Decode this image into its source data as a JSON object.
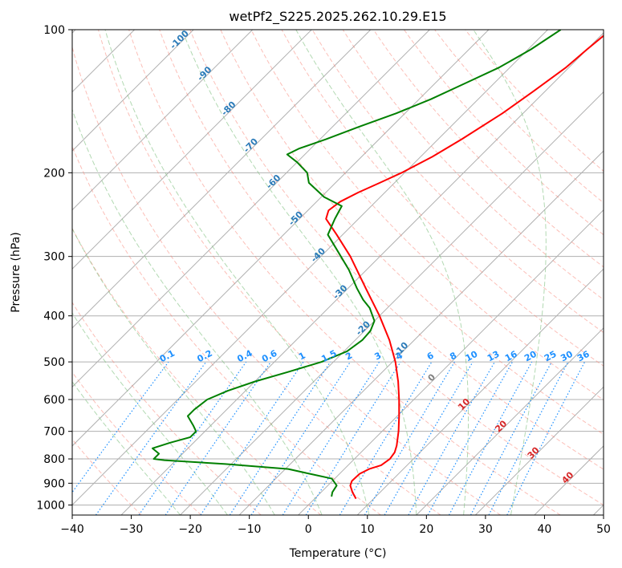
{
  "chart_data": {
    "type": "line",
    "subtype": "skew-t log-p",
    "title": "wetPf2_S225.2025.262.10.29.E15",
    "xlabel": "Temperature (°C)",
    "ylabel": "Pressure (hPa)",
    "xlim": [
      -40,
      50
    ],
    "ylim": [
      1050,
      100
    ],
    "y_scale": "log",
    "skew": 30,
    "x_ticks": [
      -40,
      -30,
      -20,
      -10,
      0,
      10,
      20,
      30,
      40,
      50
    ],
    "x_tick_labels": [
      "−40",
      "−30",
      "−20",
      "−10",
      "0",
      "10",
      "20",
      "30",
      "40",
      "50"
    ],
    "y_ticks": [
      100,
      200,
      300,
      400,
      500,
      600,
      700,
      800,
      900,
      1000
    ],
    "y_tick_labels": [
      "100",
      "200",
      "300",
      "400",
      "500",
      "600",
      "700",
      "800",
      "900",
      "1000"
    ],
    "grid": true,
    "colors": {
      "temperature": "#ff0000",
      "dewpoint": "#008000",
      "dry_adiabat": "#fa8072",
      "moist_adiabat": "#7fbf7f",
      "mixing_ratio": "#1e90ff",
      "isotherm": "#808080",
      "grid": "#b0b0b0",
      "isotherm_label": "#2b7bb9",
      "moist_label": "#d62728"
    },
    "series": [
      {
        "name": "",
        "role": "temperature",
        "points": [
          [
            970,
            7.0
          ],
          [
            940,
            5.3
          ],
          [
            910,
            3.8
          ],
          [
            890,
            3.3
          ],
          [
            860,
            3.4
          ],
          [
            840,
            4.2
          ],
          [
            825,
            5.6
          ],
          [
            800,
            6.0
          ],
          [
            775,
            5.7
          ],
          [
            750,
            4.9
          ],
          [
            700,
            2.8
          ],
          [
            650,
            0.3
          ],
          [
            600,
            -2.5
          ],
          [
            550,
            -5.7
          ],
          [
            500,
            -9.5
          ],
          [
            450,
            -14.2
          ],
          [
            400,
            -20.0
          ],
          [
            350,
            -27.0
          ],
          [
            300,
            -35.0
          ],
          [
            270,
            -41.0
          ],
          [
            250,
            -45.5
          ],
          [
            240,
            -46.5
          ],
          [
            230,
            -46.0
          ],
          [
            220,
            -44.5
          ],
          [
            210,
            -42.5
          ],
          [
            200,
            -40.5
          ],
          [
            185,
            -38.0
          ],
          [
            170,
            -36.0
          ],
          [
            150,
            -33.5
          ],
          [
            135,
            -32.0
          ],
          [
            120,
            -30.5
          ],
          [
            110,
            -30.0
          ],
          [
            100,
            -29.3
          ]
        ]
      },
      {
        "name": "",
        "role": "dewpoint",
        "points": [
          [
            960,
            2.5
          ],
          [
            940,
            1.9
          ],
          [
            910,
            1.5
          ],
          [
            880,
            -0.5
          ],
          [
            860,
            -5.0
          ],
          [
            840,
            -9.5
          ],
          [
            820,
            -21.0
          ],
          [
            805,
            -32.0
          ],
          [
            800,
            -34.0
          ],
          [
            780,
            -34.0
          ],
          [
            765,
            -35.5
          ],
          [
            760,
            -36.0
          ],
          [
            740,
            -34.0
          ],
          [
            720,
            -31.5
          ],
          [
            700,
            -31.5
          ],
          [
            680,
            -33.0
          ],
          [
            650,
            -35.5
          ],
          [
            630,
            -35.5
          ],
          [
            600,
            -35.0
          ],
          [
            575,
            -33.0
          ],
          [
            550,
            -30.0
          ],
          [
            525,
            -26.0
          ],
          [
            500,
            -22.0
          ],
          [
            475,
            -19.5
          ],
          [
            450,
            -18.8
          ],
          [
            430,
            -19.0
          ],
          [
            410,
            -20.0
          ],
          [
            385,
            -23.0
          ],
          [
            370,
            -25.5
          ],
          [
            350,
            -28.5
          ],
          [
            320,
            -33.0
          ],
          [
            290,
            -38.5
          ],
          [
            270,
            -42.5
          ],
          [
            250,
            -44.0
          ],
          [
            235,
            -45.0
          ],
          [
            225,
            -49.5
          ],
          [
            210,
            -54.5
          ],
          [
            200,
            -56.5
          ],
          [
            190,
            -60.0
          ],
          [
            183,
            -63.0
          ],
          [
            178,
            -62.0
          ],
          [
            170,
            -59.0
          ],
          [
            160,
            -55.5
          ],
          [
            150,
            -51.5
          ],
          [
            140,
            -48.0
          ],
          [
            130,
            -45.0
          ],
          [
            120,
            -41.8
          ],
          [
            110,
            -39.5
          ],
          [
            100,
            -37.8
          ]
        ]
      }
    ],
    "dry_adiabat_thetas_c": [
      -30,
      -20,
      -10,
      0,
      10,
      20,
      30,
      40,
      50,
      60,
      70,
      80,
      90,
      100,
      110,
      120,
      130,
      140,
      150
    ],
    "moist_adiabat_start_c": [
      -20,
      -12,
      -4,
      4,
      12,
      20,
      28,
      36
    ],
    "isotherm_labels": [
      {
        "text": "-100",
        "t": -100,
        "p": 106
      },
      {
        "text": "-90",
        "t": -90,
        "p": 125
      },
      {
        "text": "-80",
        "t": -80,
        "p": 148
      },
      {
        "text": "-70",
        "t": -70,
        "p": 177
      },
      {
        "text": "-60",
        "t": -60,
        "p": 211
      },
      {
        "text": "-50",
        "t": -50,
        "p": 252
      },
      {
        "text": "-40",
        "t": -40,
        "p": 301
      },
      {
        "text": "-30",
        "t": -30,
        "p": 360
      },
      {
        "text": "-20",
        "t": -20,
        "p": 429
      },
      {
        "text": "-10",
        "t": -10,
        "p": 475
      },
      {
        "text": "0",
        "t": 0,
        "p": 545
      }
    ],
    "moist_adiabat_labels": [
      {
        "text": "10",
        "t": 10,
        "p": 620
      },
      {
        "text": "20",
        "t": 20,
        "p": 690
      },
      {
        "text": "30",
        "t": 30,
        "p": 785
      },
      {
        "text": "40",
        "t": 40,
        "p": 885
      }
    ],
    "mixing_ratio_lines": [
      {
        "w": 0.1,
        "label": "0.1"
      },
      {
        "w": 0.2,
        "label": "0.2"
      },
      {
        "w": 0.4,
        "label": "0.4"
      },
      {
        "w": 0.6,
        "label": "0.6"
      },
      {
        "w": 1,
        "label": "1"
      },
      {
        "w": 1.5,
        "label": "1.5"
      },
      {
        "w": 2,
        "label": "2"
      },
      {
        "w": 3,
        "label": "3"
      },
      {
        "w": 4,
        "label": "4"
      },
      {
        "w": 6,
        "label": "6"
      },
      {
        "w": 8,
        "label": "8"
      },
      {
        "w": 10,
        "label": "10"
      },
      {
        "w": 13,
        "label": "13"
      },
      {
        "w": 16,
        "label": "16"
      },
      {
        "w": 20,
        "label": "20"
      },
      {
        "w": 25,
        "label": "25"
      },
      {
        "w": 30,
        "label": "30"
      },
      {
        "w": 36,
        "label": "36"
      }
    ],
    "mixing_ratio_label_pressure": 500
  }
}
